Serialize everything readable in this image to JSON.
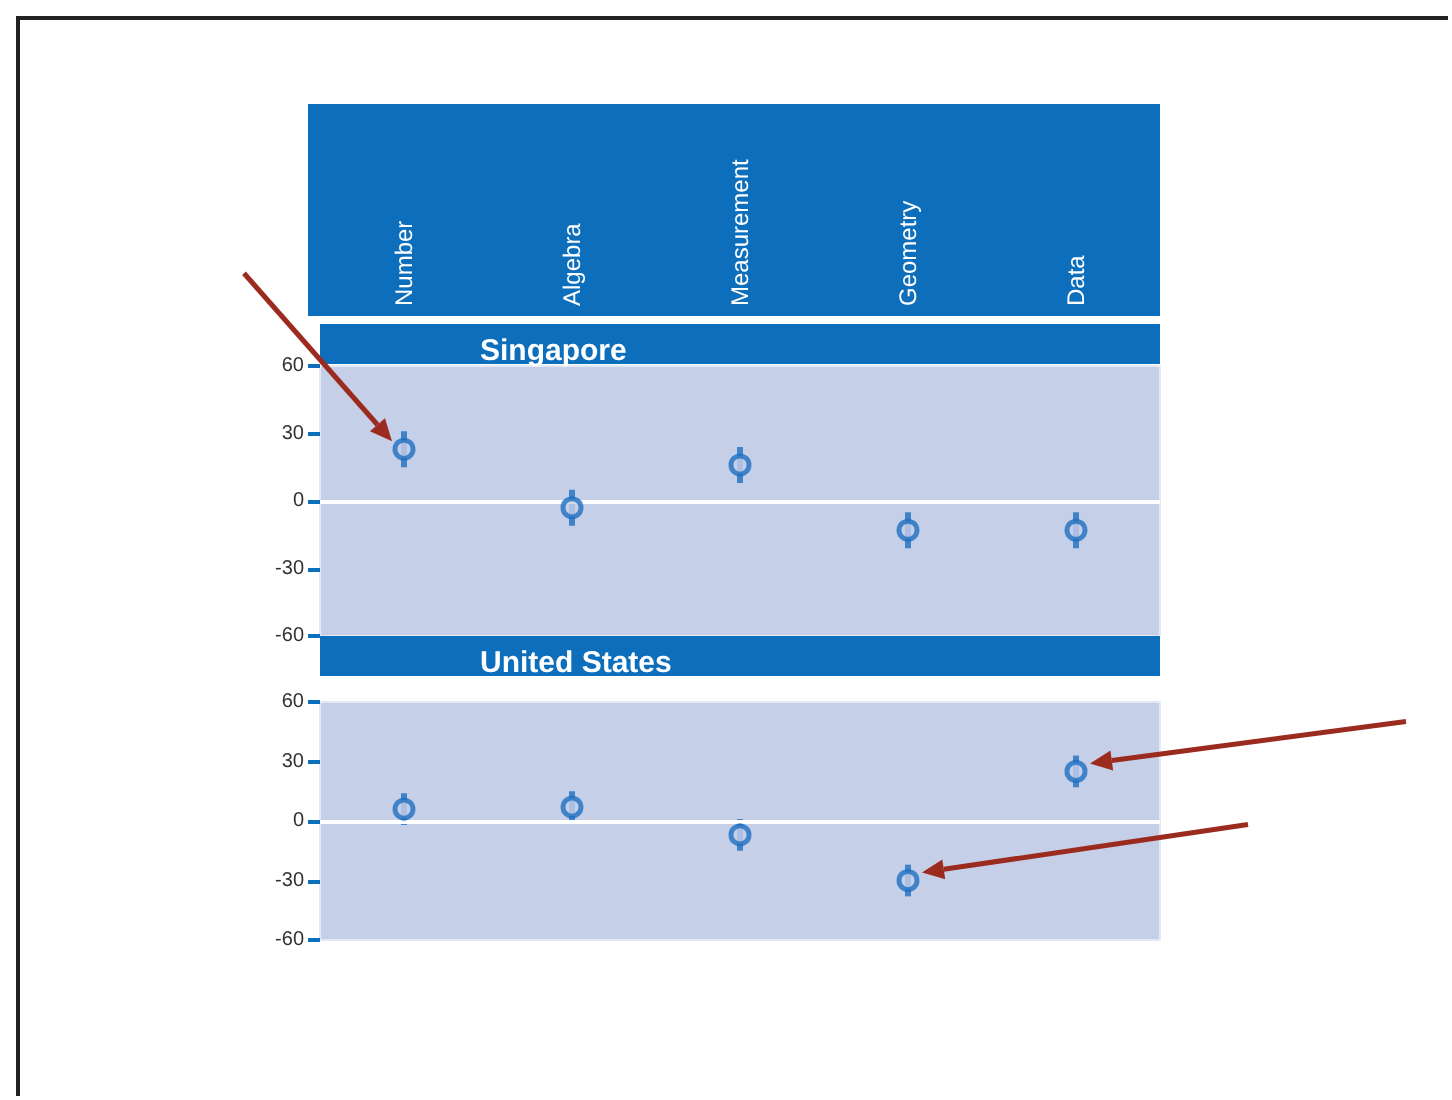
{
  "chart_data": [
    {
      "type": "scatter",
      "title": "Singapore",
      "categories": [
        "Number",
        "Algebra",
        "Measurement",
        "Geometry",
        "Data"
      ],
      "series": [
        {
          "color": "#1f6fc0",
          "values": [
            23,
            -3,
            16,
            -13,
            -13
          ],
          "errors": [
            8,
            8,
            8,
            8,
            8
          ]
        }
      ],
      "ylim": [
        -60,
        60
      ],
      "yticks": [
        -60,
        -30,
        0,
        30,
        60
      ],
      "marker": "circle",
      "grid": false,
      "ref_lines": [
        {
          "axis": "y",
          "value": 0,
          "color": "#ffffff"
        }
      ]
    },
    {
      "type": "scatter",
      "title": "United States",
      "categories": [
        null,
        null,
        null,
        null,
        null
      ],
      "series": [
        {
          "color": "#1f6fc0",
          "values": [
            6,
            7,
            -7,
            -30,
            25
          ],
          "errors": [
            8,
            8,
            8,
            8,
            8
          ]
        }
      ],
      "ylim": [
        -60,
        60
      ],
      "yticks": [
        -60,
        -30,
        0,
        30,
        60
      ],
      "marker": "circle",
      "grid": false,
      "ref_lines": [
        {
          "axis": "y",
          "value": 0,
          "color": "#ffffff"
        }
      ]
    }
  ]
}
